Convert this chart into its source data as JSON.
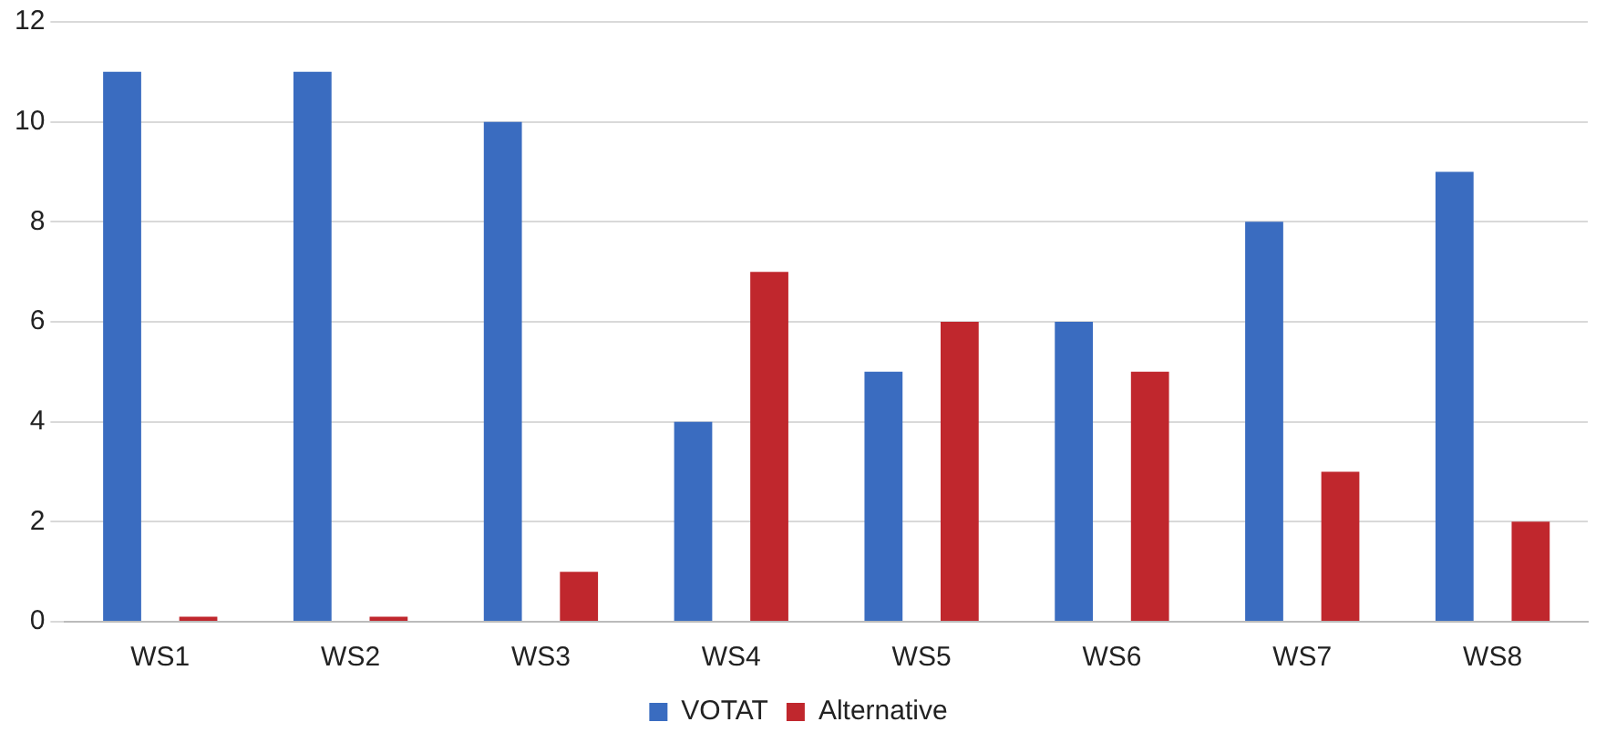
{
  "chart_data": {
    "type": "bar",
    "categories": [
      "WS1",
      "WS2",
      "WS3",
      "WS4",
      "WS5",
      "WS6",
      "WS7",
      "WS8"
    ],
    "series": [
      {
        "name": "VOTAT",
        "color": "#3a6cc0",
        "values": [
          11,
          11,
          10,
          4,
          5,
          6,
          8,
          9
        ]
      },
      {
        "name": "Alternative",
        "color": "#c0272d",
        "values": [
          0.1,
          0.1,
          1,
          7,
          6,
          5,
          3,
          2
        ]
      }
    ],
    "ylim": [
      0,
      12
    ],
    "yticks": [
      0,
      2,
      4,
      6,
      8,
      10,
      12
    ],
    "grid": "y",
    "legend": "bottom"
  }
}
